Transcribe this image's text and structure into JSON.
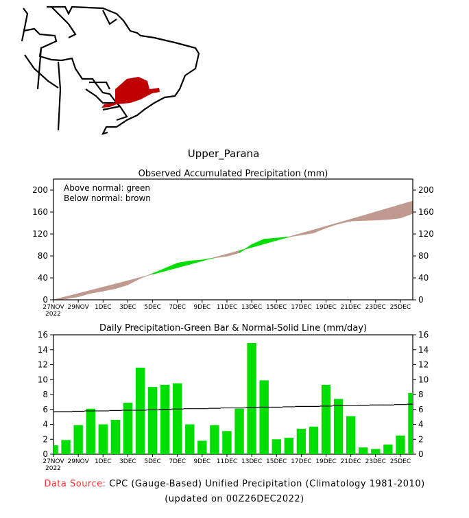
{
  "region_title": "Upper_Parana",
  "footer": {
    "source_label": "Data Source:",
    "source_text": "CPC (Gauge-Based) Unified Precipitation (Climatology 1981-2010)",
    "updated": "(updated on 00Z26DEC2022)"
  },
  "colors": {
    "green": "#00dd00",
    "brown": "#c09a90",
    "region": "#c00000",
    "source_label": "#ff3030"
  },
  "chart_data": [
    {
      "type": "area",
      "title": "Observed Accumulated Precipitation (mm)",
      "legend": [
        "Above normal: green",
        "Below normal: brown"
      ],
      "legend_placement": "top-left",
      "ylim": [
        0,
        220
      ],
      "yticks": [
        0,
        40,
        80,
        120,
        160,
        200
      ],
      "xticks": [
        "27NOV",
        "29NOV",
        "1DEC",
        "3DEC",
        "5DEC",
        "7DEC",
        "9DEC",
        "11DEC",
        "13DEC",
        "15DEC",
        "17DEC",
        "19DEC",
        "21DEC",
        "23DEC",
        "25DEC"
      ],
      "xtick_year": "2022",
      "series_note": "observed = cumulative sum of daily bars; normal = cumulative sum of daily normal"
    },
    {
      "type": "bar",
      "title": "Daily Precipitation-Green Bar & Normal-Solid Line (mm/day)",
      "ylim": [
        0,
        16
      ],
      "yticks": [
        0,
        2,
        4,
        6,
        8,
        10,
        12,
        14,
        16
      ],
      "xticks": [
        "27NOV",
        "29NOV",
        "1DEC",
        "3DEC",
        "5DEC",
        "7DEC",
        "9DEC",
        "11DEC",
        "13DEC",
        "15DEC",
        "17DEC",
        "19DEC",
        "21DEC",
        "23DEC",
        "25DEC"
      ],
      "xtick_year": "2022",
      "values": [
        1.2,
        1.9,
        3.9,
        6.1,
        4.0,
        4.6,
        6.9,
        11.6,
        9.0,
        9.3,
        9.5,
        4.0,
        1.8,
        3.9,
        3.1,
        6.1,
        14.9,
        9.9,
        2.0,
        2.2,
        3.4,
        3.7,
        9.3,
        7.4,
        5.1,
        0.9,
        0.7,
        1.3,
        2.5,
        8.2
      ],
      "normal": [
        5.7,
        5.7,
        5.75,
        5.8,
        5.8,
        5.85,
        5.9,
        5.9,
        5.95,
        6.0,
        6.05,
        6.1,
        6.1,
        6.15,
        6.2,
        6.2,
        6.25,
        6.3,
        6.3,
        6.35,
        6.4,
        6.4,
        6.45,
        6.5,
        6.5,
        6.55,
        6.6,
        6.6,
        6.65,
        6.7
      ]
    }
  ]
}
